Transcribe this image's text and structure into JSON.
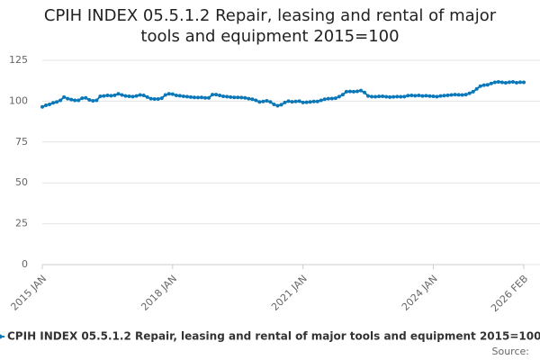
{
  "chart_data": {
    "type": "line",
    "title": "CPIH INDEX 05.5.1.2 Repair, leasing and rental of major tools and equipment 2015=100",
    "source": "Source:",
    "categories": [
      "2015 JAN",
      null,
      null,
      null,
      null,
      null,
      null,
      null,
      null,
      null,
      null,
      null,
      null,
      null,
      null,
      null,
      null,
      null,
      null,
      null,
      null,
      null,
      null,
      null,
      null,
      null,
      null,
      null,
      null,
      null,
      null,
      null,
      null,
      null,
      null,
      null,
      "2018 JAN",
      null,
      null,
      null,
      null,
      null,
      null,
      null,
      null,
      null,
      null,
      null,
      null,
      null,
      null,
      null,
      null,
      null,
      null,
      null,
      null,
      null,
      null,
      null,
      null,
      null,
      null,
      null,
      null,
      null,
      null,
      null,
      null,
      null,
      null,
      null,
      "2021 JAN",
      null,
      null,
      null,
      null,
      null,
      null,
      null,
      null,
      null,
      null,
      null,
      null,
      null,
      null,
      null,
      null,
      null,
      null,
      null,
      null,
      null,
      null,
      null,
      null,
      null,
      null,
      null,
      null,
      null,
      null,
      null,
      null,
      null,
      null,
      null,
      "2024 JAN",
      null,
      null,
      null,
      null,
      null,
      null,
      null,
      null,
      null,
      null,
      null,
      null,
      null,
      null,
      null,
      null,
      null,
      null,
      null,
      null,
      null,
      null,
      null,
      null,
      "2026 FEB"
    ],
    "series": [
      {
        "name": "CPIH INDEX 05.5.1.2 Repair, leasing and rental of major tools and equipment 2015=100",
        "color": "#0a77b8",
        "values": [
          96.5,
          97.5,
          98,
          99,
          99.5,
          100.5,
          102.5,
          101.5,
          101,
          100.5,
          100.5,
          101.8,
          102,
          100.8,
          100.2,
          100.5,
          103,
          103.2,
          103.5,
          103.3,
          103.6,
          104.5,
          103.8,
          103.2,
          103,
          102.8,
          103.2,
          103.8,
          103.5,
          102.5,
          101.5,
          101.3,
          101.3,
          101.8,
          103.8,
          104.5,
          104.3,
          103.5,
          103.3,
          103,
          102.8,
          102.5,
          102.3,
          102.2,
          102.3,
          102,
          102,
          104,
          104,
          103.5,
          103,
          102.8,
          102.5,
          102.3,
          102.3,
          102.2,
          102,
          101.5,
          101.2,
          100.5,
          99.5,
          99.8,
          100.2,
          99.5,
          98,
          97.2,
          97.8,
          99.2,
          100,
          99.6,
          99.8,
          100,
          99.2,
          99.3,
          99.5,
          99.8,
          99.8,
          100.5,
          101.2,
          101.5,
          101.6,
          101.8,
          102.8,
          104,
          105.8,
          105.9,
          105.8,
          106,
          106.5,
          105.3,
          103.2,
          102.8,
          102.7,
          102.9,
          103,
          102.7,
          102.5,
          102.6,
          102.8,
          102.7,
          102.8,
          103.4,
          103.5,
          103.3,
          103.5,
          103.2,
          103.3,
          103.1,
          103,
          102.8,
          103.2,
          103.4,
          103.6,
          103.8,
          104,
          103.9,
          103.8,
          104,
          104.8,
          105.8,
          107.5,
          109.2,
          109.8,
          110,
          110.8,
          111.5,
          111.8,
          111.5,
          111.2,
          111.6,
          111.8,
          111.3,
          111.6,
          111.5
        ]
      }
    ],
    "ylim": [
      0,
      125
    ],
    "yticks": [
      0,
      25,
      50,
      75,
      100,
      125
    ],
    "grid": true
  }
}
